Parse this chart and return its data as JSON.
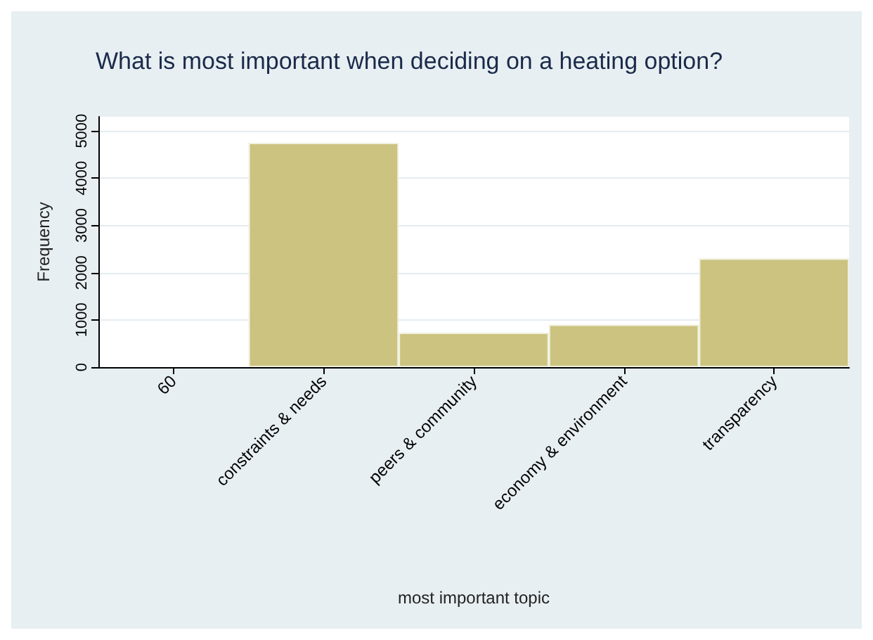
{
  "chart_data": {
    "type": "bar",
    "title": "What is most important when deciding on a heating option?",
    "xlabel": "most important topic",
    "ylabel": "Frequency",
    "categories": [
      "60",
      "constraints & needs",
      "peers & community",
      "economy & environment",
      "transparency"
    ],
    "values": [
      null,
      4750,
      730,
      900,
      2300
    ],
    "color": "#cbc37f",
    "ylim": [
      0,
      5300
    ],
    "yticks": [
      0,
      1000,
      2000,
      3000,
      4000,
      5000
    ],
    "grid": "y"
  }
}
